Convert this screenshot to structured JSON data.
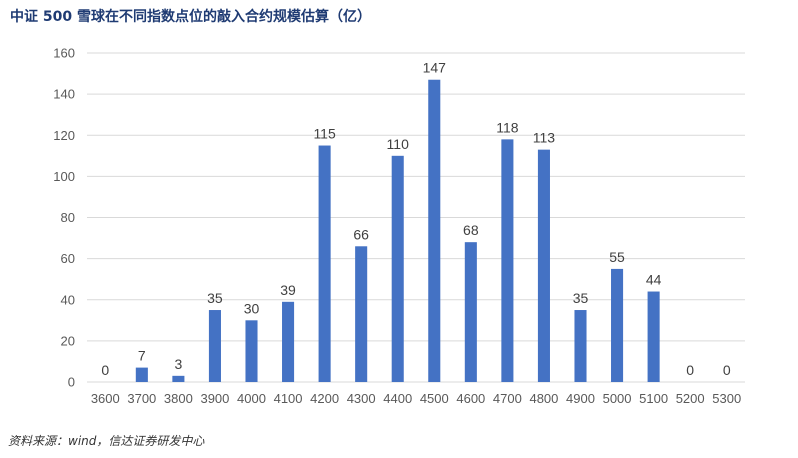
{
  "title": "中证 500 雪球在不同指数点位的敲入合约规模估算（亿）",
  "source": "资料来源：wind，信达证券研发中心",
  "chart_data": {
    "type": "bar",
    "title": "中证 500 雪球在不同指数点位的敲入合约规模估算（亿）",
    "categories": [
      "3600",
      "3700",
      "3800",
      "3900",
      "4000",
      "4100",
      "4200",
      "4300",
      "4400",
      "4500",
      "4600",
      "4700",
      "4800",
      "4900",
      "5000",
      "5100",
      "5200",
      "5300"
    ],
    "values": [
      0,
      7,
      3,
      35,
      30,
      39,
      115,
      66,
      110,
      147,
      68,
      118,
      113,
      35,
      55,
      44,
      0,
      0
    ],
    "ylim": [
      0,
      160
    ],
    "yticks": [
      0,
      20,
      40,
      60,
      80,
      100,
      120,
      140,
      160
    ],
    "grid": true,
    "bar_color": "#4472c4",
    "grid_color": "#d9d9d9",
    "data_labels": true
  }
}
